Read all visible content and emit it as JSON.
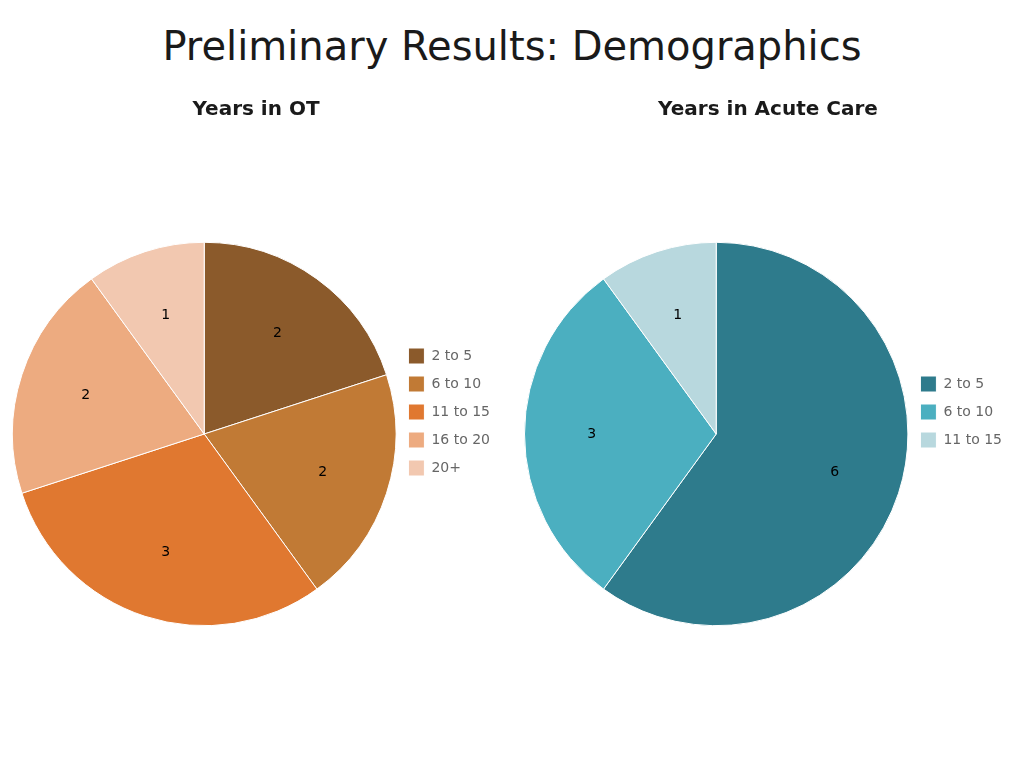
{
  "title": "Preliminary Results: Demographics",
  "chart_data": [
    {
      "type": "pie",
      "title": "Years in OT",
      "categories": [
        "2 to 5",
        "6 to 10",
        "11 to 15",
        "16 to 20",
        "20+"
      ],
      "values": [
        2,
        2,
        3,
        2,
        1
      ],
      "colors": [
        "#8B5A2B",
        "#C17A35",
        "#E07830",
        "#EDAB80",
        "#F2C8B0"
      ],
      "data_labels": true,
      "legend": "right"
    },
    {
      "type": "pie",
      "title": "Years in Acute Care",
      "categories": [
        "2 to 5",
        "6 to 10",
        "11 to 15"
      ],
      "values": [
        6,
        3,
        1
      ],
      "colors": [
        "#2E7B8C",
        "#4BAFC0",
        "#B8D8DE"
      ],
      "data_labels": true,
      "legend": "right"
    }
  ]
}
